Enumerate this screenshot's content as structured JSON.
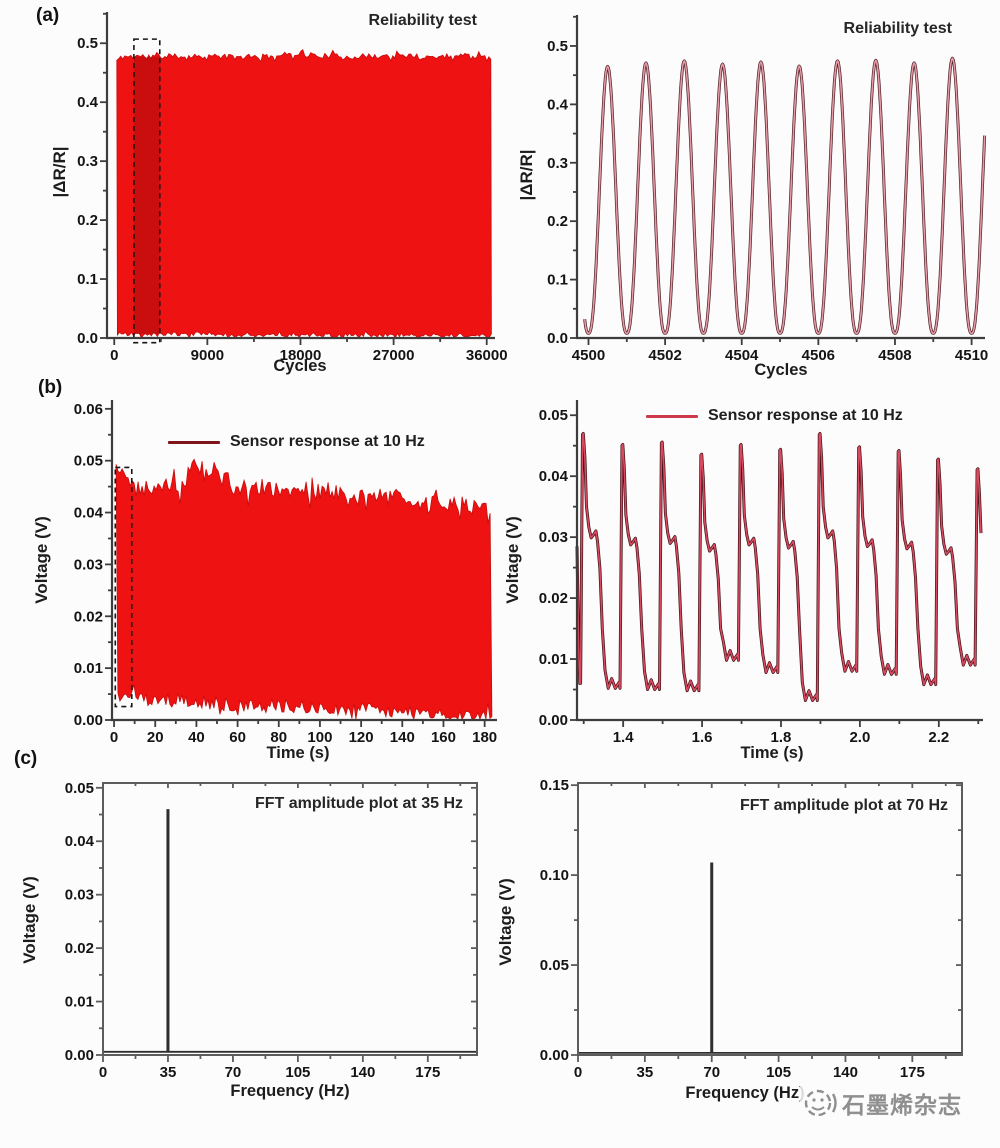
{
  "panels": {
    "a": {
      "label": "(a)"
    },
    "b": {
      "label": "(b)"
    },
    "c": {
      "label": "(c)"
    }
  },
  "watermark": {
    "text": "石墨烯杂志",
    "logo": "circle-emblem-icon"
  },
  "colors": {
    "band_red": "#ee1212",
    "band_edge": "#c50d0d",
    "shade_red": "rgba(120,8,8,0.30)",
    "dark_maroon": "#7d151b",
    "crimson": "#cd3a4e",
    "pink_line": "#e59aa5",
    "dark_line_a": "#4d1f26",
    "dark_line_b": "#411218",
    "crimson_line": "#d84a5f",
    "fft_spike": "#2e2e2e",
    "axis": "#3d3d3d",
    "box": "#5c5c5c",
    "tick_text": "#141414",
    "dash_box": "#151515",
    "watermark": "#8f8f8f"
  },
  "chart_data": [
    {
      "id": "reliability-full",
      "type": "area",
      "annotation": "Reliability test",
      "xlabel": "Cycles",
      "ylabel": "|ΔR/R|",
      "xlim": [
        -700,
        36800
      ],
      "ylim": [
        0,
        0.553
      ],
      "x_ticks": [
        0,
        9000,
        18000,
        27000,
        36000
      ],
      "x_tick_labels": [
        "0",
        "9000",
        "18000",
        "27000",
        "36000"
      ],
      "x_minor": [
        4500,
        13500,
        22500,
        31500
      ],
      "y_ticks": [
        0,
        0.1,
        0.2,
        0.3,
        0.4,
        0.5
      ],
      "y_tick_labels": [
        "0.0",
        "0.1",
        "0.2",
        "0.3",
        "0.4",
        "0.5"
      ],
      "y_minor": [
        0.05,
        0.15,
        0.25,
        0.35,
        0.45,
        0.55
      ],
      "band": {
        "x_start": 250,
        "x_end": 36450,
        "seed": 11,
        "top_noise": 0.0045,
        "bottom_noise": 0.0035,
        "top_env": [
          [
            250,
            0.471
          ],
          [
            900,
            0.4775
          ],
          [
            2500,
            0.478
          ],
          [
            5000,
            0.4775
          ],
          [
            9000,
            0.4785
          ],
          [
            12000,
            0.476
          ],
          [
            15000,
            0.4775
          ],
          [
            18000,
            0.4835
          ],
          [
            19500,
            0.479
          ],
          [
            23000,
            0.4775
          ],
          [
            27000,
            0.4785
          ],
          [
            30000,
            0.4765
          ],
          [
            33000,
            0.4795
          ],
          [
            35500,
            0.481
          ],
          [
            36450,
            0.477
          ]
        ],
        "bottom_env": [
          [
            250,
            0.0065
          ],
          [
            4000,
            0.006
          ],
          [
            9000,
            0.0075
          ],
          [
            12000,
            0.0045
          ],
          [
            18000,
            0.006
          ],
          [
            24000,
            0.0045
          ],
          [
            30000,
            0.006
          ],
          [
            36450,
            0.004
          ]
        ]
      },
      "zoom_box": {
        "x1": 1900,
        "x2": 4400,
        "y1": -0.008,
        "y2": 0.507,
        "shade": true
      },
      "box": false
    },
    {
      "id": "reliability-zoom",
      "type": "line",
      "annotation": "Reliability test",
      "xlabel": "Cycles",
      "ylabel": "|ΔR/R|",
      "xlim": [
        4499.7,
        4510.35
      ],
      "ylim": [
        0,
        0.553
      ],
      "x_ticks": [
        4500,
        4502,
        4504,
        4506,
        4508,
        4510
      ],
      "x_tick_labels": [
        "4500",
        "4502",
        "4504",
        "4506",
        "4508",
        "4510"
      ],
      "x_minor": [
        4501,
        4503,
        4505,
        4507,
        4509
      ],
      "y_ticks": [
        0,
        0.1,
        0.2,
        0.3,
        0.4,
        0.5
      ],
      "y_tick_labels": [
        "0.0",
        "0.1",
        "0.2",
        "0.3",
        "0.4",
        "0.5"
      ],
      "y_minor": [
        0.05,
        0.15,
        0.25,
        0.35,
        0.45,
        0.55
      ],
      "wave": {
        "kind": "sine",
        "start": 4500,
        "period": 1,
        "min": 0.008,
        "power": 1.25,
        "peaks": [
          0.465,
          0.471,
          0.4745,
          0.469,
          0.4725,
          0.4655,
          0.4745,
          0.4755,
          0.471,
          0.479
        ]
      },
      "line_colors": {
        "outer": "dark_line_a",
        "inner": "pink_line"
      },
      "box": false
    },
    {
      "id": "sensor-full",
      "type": "area",
      "legend": "Sensor response at 10 Hz",
      "xlabel": "Time (s)",
      "ylabel": "Voltage (V)",
      "xlim": [
        -1,
        186
      ],
      "ylim": [
        0,
        0.0617
      ],
      "x_ticks": [
        0,
        20,
        40,
        60,
        80,
        100,
        120,
        140,
        160,
        180
      ],
      "x_tick_labels": [
        "0",
        "20",
        "40",
        "60",
        "80",
        "100",
        "120",
        "140",
        "160",
        "180"
      ],
      "x_minor": [
        10,
        30,
        50,
        70,
        90,
        110,
        130,
        150,
        170
      ],
      "y_ticks": [
        0,
        0.01,
        0.02,
        0.03,
        0.04,
        0.05,
        0.06
      ],
      "y_tick_labels": [
        "0.00",
        "0.01",
        "0.02",
        "0.03",
        "0.04",
        "0.05",
        "0.06"
      ],
      "y_minor": [
        0.005,
        0.015,
        0.025,
        0.035,
        0.045,
        0.055
      ],
      "band": {
        "x_start": 1,
        "x_end": 183.5,
        "seed": 5,
        "top_noise": 0.0016,
        "bottom_noise": 0.0013,
        "top_env": [
          [
            1,
            0.0487
          ],
          [
            3,
            0.049
          ],
          [
            5,
            0.0462
          ],
          [
            9,
            0.0448
          ],
          [
            14,
            0.0452
          ],
          [
            20,
            0.0443
          ],
          [
            26,
            0.0452
          ],
          [
            32,
            0.0446
          ],
          [
            38,
            0.0486
          ],
          [
            41,
            0.0492
          ],
          [
            44,
            0.0472
          ],
          [
            48,
            0.0482
          ],
          [
            52,
            0.0468
          ],
          [
            56,
            0.0452
          ],
          [
            60,
            0.0443
          ],
          [
            66,
            0.0447
          ],
          [
            72,
            0.0452
          ],
          [
            78,
            0.0438
          ],
          [
            84,
            0.0442
          ],
          [
            90,
            0.0447
          ],
          [
            96,
            0.0432
          ],
          [
            102,
            0.0447
          ],
          [
            108,
            0.0437
          ],
          [
            114,
            0.0427
          ],
          [
            120,
            0.0432
          ],
          [
            126,
            0.0437
          ],
          [
            132,
            0.0427
          ],
          [
            138,
            0.0437
          ],
          [
            144,
            0.0422
          ],
          [
            150,
            0.0417
          ],
          [
            156,
            0.0422
          ],
          [
            162,
            0.0412
          ],
          [
            168,
            0.0422
          ],
          [
            174,
            0.0407
          ],
          [
            178,
            0.0412
          ],
          [
            181,
            0.0397
          ],
          [
            183.5,
            0.0377
          ]
        ],
        "bottom_env": [
          [
            1,
            0.005
          ],
          [
            5,
            0.0045
          ],
          [
            12,
            0.004
          ],
          [
            25,
            0.0038
          ],
          [
            40,
            0.0034
          ],
          [
            60,
            0.003
          ],
          [
            80,
            0.0028
          ],
          [
            100,
            0.0024
          ],
          [
            120,
            0.002
          ],
          [
            140,
            0.0016
          ],
          [
            158,
            0.0012
          ],
          [
            170,
            0.0008
          ],
          [
            183.5,
            0.0006
          ]
        ]
      },
      "zoom_box": {
        "x1": 0.6,
        "x2": 8.6,
        "y1": 0.0026,
        "y2": 0.0487,
        "shade": false
      },
      "box": false
    },
    {
      "id": "sensor-zoom",
      "type": "line",
      "legend": "Sensor response at 10 Hz",
      "xlabel": "Time (s)",
      "ylabel": "Voltage (V)",
      "xlim": [
        1.283,
        2.312
      ],
      "ylim": [
        0,
        0.0525
      ],
      "x_ticks": [
        1.4,
        1.6,
        1.8,
        2.0,
        2.2
      ],
      "x_tick_labels": [
        "1.4",
        "1.6",
        "1.8",
        "2.0",
        "2.2"
      ],
      "x_minor": [
        1.3,
        1.5,
        1.7,
        1.9,
        2.1,
        2.3
      ],
      "y_ticks": [
        0,
        0.01,
        0.02,
        0.03,
        0.04,
        0.05
      ],
      "y_tick_labels": [
        "0.00",
        "0.01",
        "0.02",
        "0.03",
        "0.04",
        "0.05"
      ],
      "y_minor": [
        0.005,
        0.015,
        0.025,
        0.035,
        0.045
      ],
      "wave": {
        "kind": "pulse",
        "start": 1.292,
        "period": 0.1,
        "n": 11,
        "peaks": [
          0.047,
          0.0452,
          0.0456,
          0.0436,
          0.0452,
          0.0444,
          0.047,
          0.0448,
          0.0442,
          0.0428,
          0.0412
        ],
        "mins": [
          0.0052,
          0.005,
          0.0048,
          0.0098,
          0.0078,
          0.0032,
          0.008,
          0.0075,
          0.0058,
          0.009,
          0.0085
        ],
        "lead_in": [
          [
            1.283,
            0.0285
          ],
          [
            1.287,
            0.012
          ],
          [
            1.29,
            0.006
          ]
        ]
      },
      "line_colors": {
        "outer": "dark_line_b",
        "inner": "crimson_line"
      },
      "box": false
    },
    {
      "id": "fft-35",
      "type": "spike",
      "annotation": "FFT amplitude plot at 35 Hz",
      "xlabel": "Frequency (Hz)",
      "ylabel": "Voltage (V)",
      "xlim": [
        0,
        201.5
      ],
      "ylim": [
        0,
        0.0509
      ],
      "x_ticks": [
        0,
        35,
        70,
        105,
        140,
        175
      ],
      "x_tick_labels": [
        "0",
        "35",
        "70",
        "105",
        "140",
        "175"
      ],
      "x_minor": [
        17.5,
        52.5,
        87.5,
        122.5,
        157.5,
        192.5
      ],
      "y_ticks": [
        0,
        0.01,
        0.02,
        0.03,
        0.04,
        0.05
      ],
      "y_tick_labels": [
        "0.00",
        "0.01",
        "0.02",
        "0.03",
        "0.04",
        "0.05"
      ],
      "y_minor": [
        0.005,
        0.015,
        0.025,
        0.035,
        0.045
      ],
      "spike": {
        "frequency_hz": 35,
        "amplitude_v": 0.046,
        "baseline_v": 0.0006
      },
      "box": true
    },
    {
      "id": "fft-70",
      "type": "spike",
      "annotation": "FFT amplitude plot at 70 Hz",
      "xlabel": "Frequency (Hz)",
      "ylabel": "Voltage (V)",
      "xlim": [
        0,
        201
      ],
      "ylim": [
        0,
        0.1512
      ],
      "x_ticks": [
        0,
        35,
        70,
        105,
        140,
        175
      ],
      "x_tick_labels": [
        "0",
        "35",
        "70",
        "105",
        "140",
        "175"
      ],
      "x_minor": [
        17.5,
        52.5,
        87.5,
        122.5,
        157.5,
        192.5
      ],
      "y_ticks": [
        0,
        0.05,
        0.1,
        0.15
      ],
      "y_tick_labels": [
        "0.00",
        "0.05",
        "0.10",
        "0.15"
      ],
      "y_minor": [
        0.025,
        0.075,
        0.125
      ],
      "spike": {
        "frequency_hz": 70,
        "amplitude_v": 0.107,
        "baseline_v": 0.0012
      },
      "box": true
    }
  ]
}
